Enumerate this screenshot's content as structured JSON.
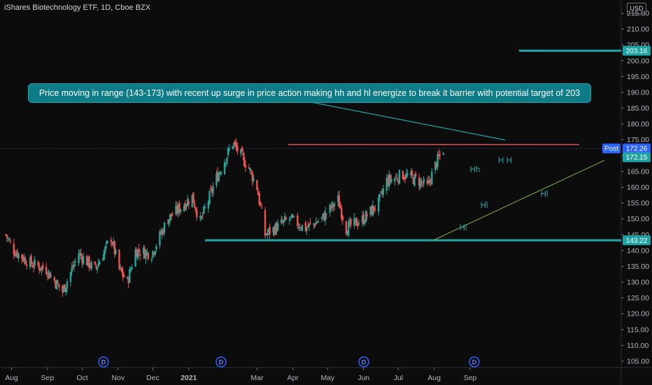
{
  "header": {
    "symbol_title": "iShares Biotechnology ETF, 1D, Cboe BZX",
    "currency": "USD"
  },
  "annotation": {
    "text": "Price moving in range (143-173) with recent up surge in price action making hh and hl energize to break it barrier with potential target of 203"
  },
  "colors": {
    "background": "#0c0c0c",
    "up": "#26a69a",
    "down": "#ef5350",
    "teal_line": "#1fa3a3",
    "resistance": "#e05454",
    "trendline": "#7cb342",
    "badge_blue": "#2962ff"
  },
  "chart_data": {
    "type": "candlestick",
    "title": "iShares Biotechnology ETF, 1D, Cboe BZX",
    "ylim": [
      103,
      217
    ],
    "y_ticks": [
      "105.00",
      "110.00",
      "115.00",
      "120.00",
      "125.00",
      "130.00",
      "135.00",
      "140.00",
      "145.00",
      "150.00",
      "155.00",
      "160.00",
      "165.00",
      "170.00",
      "175.00",
      "180.00",
      "185.00",
      "190.00",
      "195.00",
      "200.00",
      "205.00",
      "210.00",
      "215.00"
    ],
    "x_ticks": [
      "Aug",
      "Sep",
      "Oct",
      "Nov",
      "Dec",
      "2021",
      "Mar",
      "Apr",
      "May",
      "Jun",
      "Jul",
      "Aug",
      "Sep"
    ],
    "price_tags": [
      {
        "label": "203.16",
        "value": 203.16
      },
      {
        "label": "Post",
        "value": 172.26
      },
      {
        "label": "172.26",
        "value": 172.26
      },
      {
        "label": "172.15",
        "value": 172.15
      },
      {
        "label": "143.22",
        "value": 143.22
      }
    ],
    "horizontal_levels": [
      {
        "name": "target",
        "value": 203.16
      },
      {
        "name": "support",
        "value": 143.22
      },
      {
        "name": "resistance",
        "value": 173.5
      }
    ],
    "pattern_labels": [
      "Hh",
      "H H",
      "Hl",
      "Hl",
      "Hl"
    ],
    "event_badges": [
      "D",
      "D",
      "D",
      "D"
    ],
    "price_path": [
      [
        "2020-07-27",
        145
      ],
      [
        "2020-08-03",
        140
      ],
      [
        "2020-08-17",
        136
      ],
      [
        "2020-08-31",
        134
      ],
      [
        "2020-09-14",
        127
      ],
      [
        "2020-09-28",
        139
      ],
      [
        "2020-10-12",
        134
      ],
      [
        "2020-10-26",
        144
      ],
      [
        "2020-11-02",
        134
      ],
      [
        "2020-11-09",
        130
      ],
      [
        "2020-11-16",
        140
      ],
      [
        "2020-11-30",
        139
      ],
      [
        "2020-12-14",
        150
      ],
      [
        "2021-01-04",
        157
      ],
      [
        "2021-01-11",
        149
      ],
      [
        "2021-01-25",
        163
      ],
      [
        "2021-02-08",
        174
      ],
      [
        "2021-02-22",
        166
      ],
      [
        "2021-03-01",
        160
      ],
      [
        "2021-03-08",
        145
      ],
      [
        "2021-03-29",
        150
      ],
      [
        "2021-04-12",
        147
      ],
      [
        "2021-04-26",
        150
      ],
      [
        "2021-05-10",
        156
      ],
      [
        "2021-05-17",
        147
      ],
      [
        "2021-06-01",
        150
      ],
      [
        "2021-06-14",
        155
      ],
      [
        "2021-06-21",
        162
      ],
      [
        "2021-07-05",
        164
      ],
      [
        "2021-07-19",
        162
      ],
      [
        "2021-07-26",
        160
      ],
      [
        "2021-08-02",
        167
      ],
      [
        "2021-08-09",
        172
      ]
    ]
  }
}
